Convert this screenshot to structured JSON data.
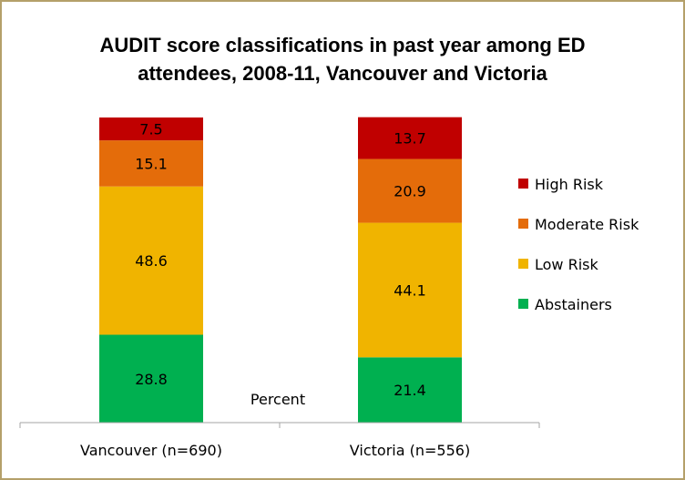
{
  "chart_data": {
    "type": "bar",
    "stacked": true,
    "title": "AUDIT score classifications  in past year among ED\nattendees, 2008-11, Vancouver and Victoria",
    "ylabel": "Percent",
    "categories": [
      "Vancouver (n=690)",
      "Victoria (n=556)"
    ],
    "ylim": [
      0,
      100
    ],
    "grid": false,
    "legend_position": "right",
    "series": [
      {
        "name": "Abstainers",
        "color": "#00b050",
        "values": [
          28.8,
          21.4
        ]
      },
      {
        "name": "Low Risk",
        "color": "#f0b400",
        "values": [
          48.6,
          44.1
        ]
      },
      {
        "name": "Moderate Risk",
        "color": "#e46c0a",
        "values": [
          15.1,
          20.9
        ]
      },
      {
        "name": "High Risk",
        "color": "#c00000",
        "values": [
          7.5,
          13.7
        ]
      }
    ],
    "axis_color": "#a6a6a6",
    "frame_color": "#b4a06a"
  }
}
